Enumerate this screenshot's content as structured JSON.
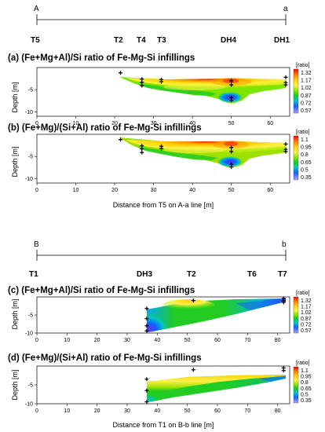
{
  "chart_data": [
    {
      "type": "heatmap",
      "section": {
        "start_label": "A",
        "end_label": "a",
        "boreholes": [
          {
            "name": "T5",
            "x": 0
          },
          {
            "name": "T2",
            "x": 21.5
          },
          {
            "name": "T4",
            "x": 27
          },
          {
            "name": "T3",
            "x": 32
          },
          {
            "name": "DH4",
            "x": 50
          },
          {
            "name": "DH1",
            "x": 64.5
          }
        ]
      },
      "title": "(a) (Fe+Mg+Al)/Si ratio of Fe-Mg-Si infillings",
      "ylabel": "Depth [m]",
      "xlabel": "",
      "xlim": [
        0,
        65
      ],
      "ylim": [
        -11,
        0
      ],
      "xticks": [
        "0",
        "10",
        "20",
        "30",
        "40",
        "50",
        "60"
      ],
      "yticks": [
        "-5",
        "-10"
      ],
      "colorbar": {
        "label": "[ratio]",
        "ticks": [
          "1.32",
          "1.17",
          "1.02",
          "0.87",
          "0.72",
          "0.57"
        ]
      },
      "samples": [
        [
          21.5,
          -1.2
        ],
        [
          27,
          -2.6
        ],
        [
          27,
          -3.3
        ],
        [
          27,
          -4.1
        ],
        [
          32,
          -2.7
        ],
        [
          32,
          -3.2
        ],
        [
          50,
          -3.0
        ],
        [
          50,
          -3.9
        ],
        [
          50,
          -6.8
        ],
        [
          50,
          -7.4
        ],
        [
          64,
          -2.2
        ],
        [
          64,
          -3.4
        ],
        [
          64,
          -3.9
        ]
      ],
      "grid": false
    },
    {
      "type": "heatmap",
      "title": "(b) (Fe+Mg)/(Si+Al) ratio of Fe-Mg-Si infillings",
      "ylabel": "Depth [m]",
      "xlabel": "Distance from T5 on A-a line [m]",
      "xlim": [
        0,
        65
      ],
      "ylim": [
        -11,
        0
      ],
      "xticks": [
        "0",
        "10",
        "20",
        "30",
        "40",
        "50",
        "60"
      ],
      "yticks": [
        "-5",
        "-10"
      ],
      "colorbar": {
        "label": "[ratio]",
        "ticks": [
          "1.1",
          "0.95",
          "0.8",
          "0.65",
          "0.5",
          "0.35"
        ]
      },
      "samples": [
        [
          21.5,
          -1.2
        ],
        [
          27,
          -2.6
        ],
        [
          27,
          -3.3
        ],
        [
          27,
          -4.1
        ],
        [
          32,
          -2.7
        ],
        [
          32,
          -3.2
        ],
        [
          50,
          -3.0
        ],
        [
          50,
          -3.9
        ],
        [
          50,
          -6.8
        ],
        [
          50,
          -7.4
        ],
        [
          64,
          -2.2
        ],
        [
          64,
          -3.4
        ],
        [
          64,
          -3.9
        ]
      ],
      "grid": false
    },
    {
      "type": "heatmap",
      "section": {
        "start_label": "B",
        "end_label": "b",
        "boreholes": [
          {
            "name": "T1",
            "x": 0
          },
          {
            "name": "DH3",
            "x": 36.5
          },
          {
            "name": "T2",
            "x": 52
          },
          {
            "name": "T6",
            "x": 70
          },
          {
            "name": "T7",
            "x": 82
          }
        ]
      },
      "title": "(c) (Fe+Mg+Al)/Si ratio of Fe-Mg-Si infillings",
      "ylabel": "Depth [m]",
      "xlabel": "",
      "xlim": [
        0,
        84
      ],
      "ylim": [
        -10,
        0
      ],
      "xticks": [
        "0",
        "10",
        "20",
        "30",
        "40",
        "50",
        "60",
        "70",
        "80"
      ],
      "yticks": [
        "-5",
        "-10"
      ],
      "colorbar": {
        "label": "[ratio]",
        "ticks": [
          "1.32",
          "1.17",
          "1.02",
          "0.87",
          "0.72",
          "0.57"
        ]
      },
      "samples": [
        [
          36.5,
          -3.2
        ],
        [
          36.5,
          -6.0
        ],
        [
          36.5,
          -8.0
        ],
        [
          36.5,
          -9.4
        ],
        [
          52,
          -1.0
        ],
        [
          82,
          -0.4
        ],
        [
          82,
          -1.0
        ],
        [
          82,
          -1.5
        ]
      ],
      "grid": false
    },
    {
      "type": "heatmap",
      "title": "(d) (Fe+Mg)/(Si+Al) ratio of Fe-Mg-Si infillings",
      "ylabel": "Depth [m]",
      "xlabel": "Distance from T1 on B-b line [m]",
      "xlim": [
        0,
        84
      ],
      "ylim": [
        -10,
        0
      ],
      "xticks": [
        "0",
        "10",
        "20",
        "30",
        "40",
        "50",
        "60",
        "70",
        "80"
      ],
      "yticks": [
        "-5",
        "-10"
      ],
      "colorbar": {
        "label": "[ratio]",
        "ticks": [
          "1.1",
          "0.95",
          "0.8",
          "0.65",
          "0.5",
          "0.35"
        ]
      },
      "samples": [
        [
          36.5,
          -3.5
        ],
        [
          36.5,
          -6.5
        ],
        [
          36.5,
          -9.5
        ],
        [
          52,
          -1.0
        ],
        [
          82,
          -0.5
        ],
        [
          82,
          -1.2
        ]
      ],
      "grid": false
    }
  ],
  "colors": {
    "ramp": [
      "#ff0000",
      "#ff7a00",
      "#ffd000",
      "#fff24a",
      "#b8f000",
      "#22d000",
      "#00c8c8",
      "#1060ff",
      "#6a30ff",
      "#c0a0ff"
    ]
  }
}
